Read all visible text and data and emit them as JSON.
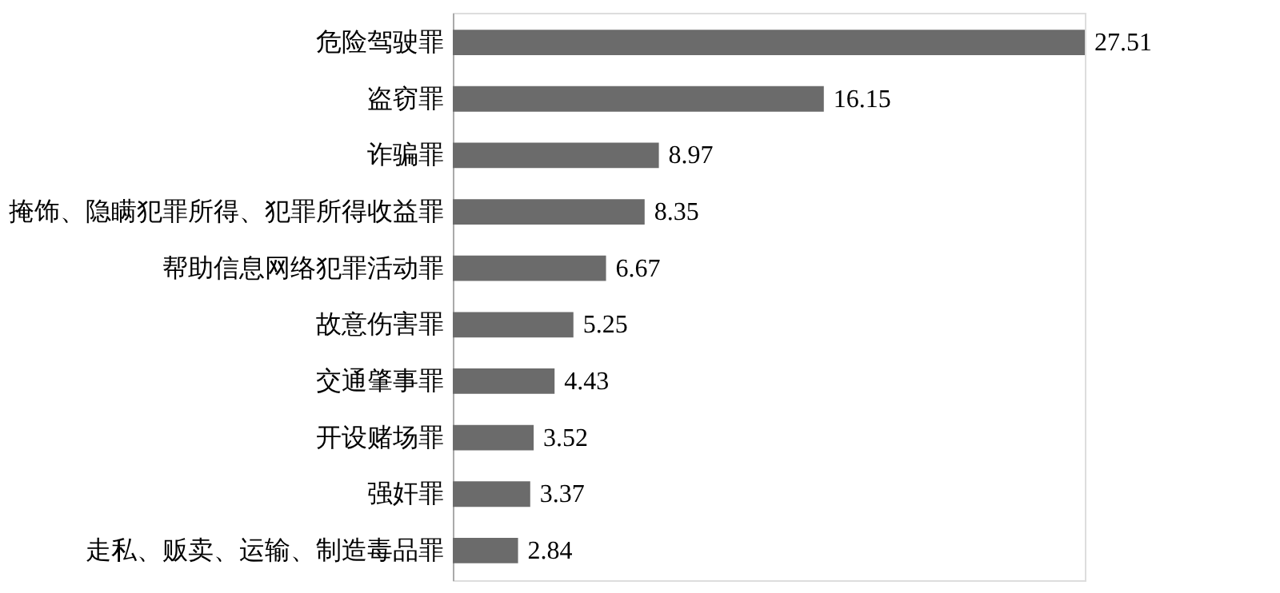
{
  "chart_data": {
    "type": "bar",
    "orientation": "horizontal",
    "categories": [
      "危险驾驶罪",
      "盗窃罪",
      "诈骗罪",
      "掩饰、隐瞒犯罪所得、犯罪所得收益罪",
      "帮助信息网络犯罪活动罪",
      "故意伤害罪",
      "交通肇事罪",
      "开设赌场罪",
      "强奸罪",
      "走私、贩卖、运输、制造毒品罪"
    ],
    "values": [
      27.51,
      16.15,
      8.97,
      8.35,
      6.67,
      5.25,
      4.43,
      3.52,
      3.37,
      2.84
    ],
    "color": "#6b6b6b",
    "data_labels": true
  }
}
